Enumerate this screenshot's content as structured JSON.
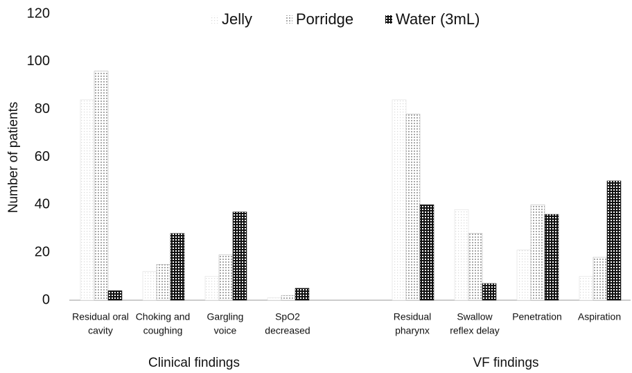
{
  "chart_data": {
    "type": "bar",
    "ylabel": "Number of patients",
    "categories": [
      [
        "Residual oral",
        "cavity"
      ],
      [
        "Choking and",
        "coughing"
      ],
      [
        "Gargling",
        "voice"
      ],
      [
        "SpO2",
        "decreased"
      ],
      null,
      [
        "Residual",
        "pharynx"
      ],
      [
        "Swallow",
        "reflex delay"
      ],
      [
        "Penetration"
      ],
      [
        "Aspiration"
      ]
    ],
    "group_labels": [
      "Clinical findings",
      "VF findings"
    ],
    "series": [
      {
        "name": "Jelly",
        "color": "#d8d8d8",
        "values": [
          84,
          12,
          10,
          1,
          null,
          84,
          38,
          21,
          10
        ]
      },
      {
        "name": "Porridge",
        "color": "#a8a8a8",
        "values": [
          96,
          15,
          19,
          2,
          null,
          78,
          28,
          40,
          18
        ]
      },
      {
        "name": "Water (3mL)",
        "color": "#111111",
        "values": [
          4,
          28,
          37,
          5,
          null,
          40,
          7,
          36,
          50
        ]
      }
    ],
    "ylim": [
      0,
      120
    ],
    "yticks": [
      0,
      20,
      40,
      60,
      80,
      100,
      120
    ],
    "grid": false,
    "legend": "top"
  }
}
